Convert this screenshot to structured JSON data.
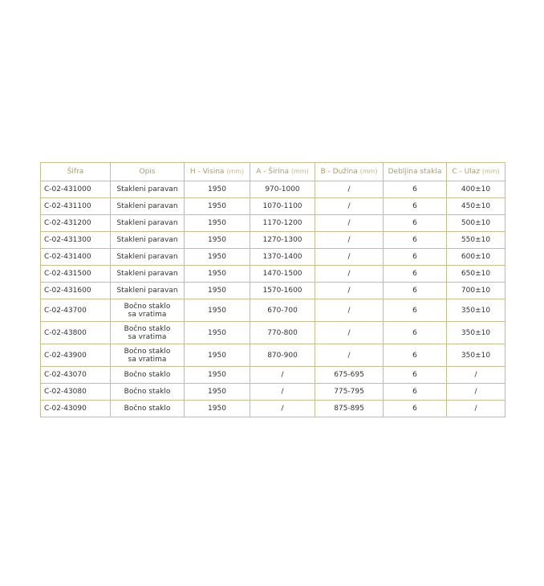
{
  "table": {
    "headers": [
      {
        "label": "Šifra",
        "unit": ""
      },
      {
        "label": "Opis",
        "unit": ""
      },
      {
        "label": "H - Visina",
        "unit": "(mm)"
      },
      {
        "label": "A - Širina",
        "unit": "(mm)"
      },
      {
        "label": "B - Dužina",
        "unit": "(mm)"
      },
      {
        "label": "Debljina stakla",
        "unit": ""
      },
      {
        "label": "C - Ulaz",
        "unit": "(mm)"
      }
    ],
    "rows": [
      [
        "C-02-431000",
        "Stakleni paravan",
        "1950",
        "970-1000",
        "/",
        "6",
        "400±10"
      ],
      [
        "C-02-431100",
        "Stakleni paravan",
        "1950",
        "1070-1100",
        "/",
        "6",
        "450±10"
      ],
      [
        "C-02-431200",
        "Stakleni paravan",
        "1950",
        "1170-1200",
        "/",
        "6",
        "500±10"
      ],
      [
        "C-02-431300",
        "Stakleni paravan",
        "1950",
        "1270-1300",
        "/",
        "6",
        "550±10"
      ],
      [
        "C-02-431400",
        "Stakleni paravan",
        "1950",
        "1370-1400",
        "/",
        "6",
        "600±10"
      ],
      [
        "C-02-431500",
        "Stakleni paravan",
        "1950",
        "1470-1500",
        "/",
        "6",
        "650±10"
      ],
      [
        "C-02-431600",
        "Stakleni paravan",
        "1950",
        "1570-1600",
        "/",
        "6",
        "700±10"
      ],
      [
        "C-02-43700",
        "Bočno staklo\nsa vratima",
        "1950",
        "670-700",
        "/",
        "6",
        "350±10"
      ],
      [
        "C-02-43800",
        "Bočno staklo\nsa vratima",
        "1950",
        "770-800",
        "/",
        "6",
        "350±10"
      ],
      [
        "C-02-43900",
        "Bočno staklo\nsa vratima",
        "1950",
        "870-900",
        "/",
        "6",
        "350±10"
      ],
      [
        "C-02-43070",
        "Bočno staklo",
        "1950",
        "/",
        "675-695",
        "6",
        "/"
      ],
      [
        "C-02-43080",
        "Bočno staklo",
        "1950",
        "/",
        "775-795",
        "6",
        "/"
      ],
      [
        "C-02-43090",
        "Bočno staklo",
        "1950",
        "/",
        "875-895",
        "6",
        "/"
      ]
    ]
  },
  "colors": {
    "border": "#cbbd92",
    "header_text": "#b59c62"
  }
}
